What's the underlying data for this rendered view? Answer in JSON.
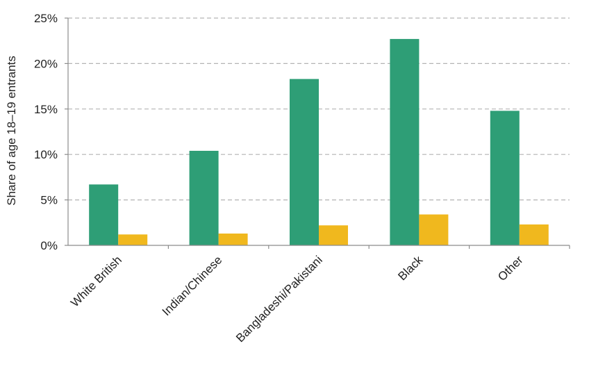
{
  "chart_data": {
    "type": "bar",
    "title": "",
    "xlabel": "",
    "ylabel": "Share of age 18–19 entrants",
    "categories": [
      "White British",
      "Indian/Chinese",
      "Bangladeshi/Pakistani",
      "Black",
      "Other"
    ],
    "series": [
      {
        "color": "#2e9e76",
        "values": [
          6.7,
          10.4,
          18.3,
          22.7,
          14.8
        ]
      },
      {
        "color": "#f0b81e",
        "values": [
          1.2,
          1.3,
          2.2,
          3.4,
          2.3
        ]
      }
    ],
    "ylim": [
      0,
      25
    ],
    "yticks": [
      "0%",
      "5%",
      "10%",
      "15%",
      "20%",
      "25%"
    ],
    "ytick_values": [
      0,
      5,
      10,
      15,
      20,
      25
    ],
    "grid": true,
    "grid_style": "dashed",
    "legend": "none"
  }
}
